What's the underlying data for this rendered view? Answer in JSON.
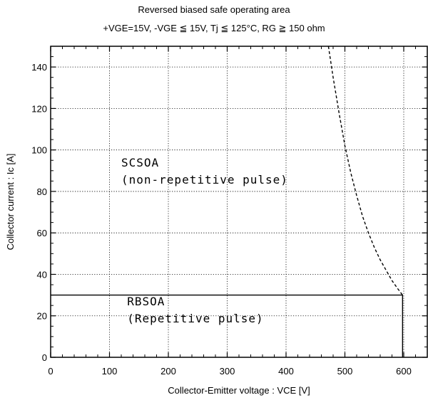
{
  "chart_data": {
    "type": "line",
    "title": "Reversed biased safe operating area",
    "subtitle": "+VGE=15V,  -VGE ≦ 15V,  Tj ≦ 125°C,  RG ≧ 150 ohm",
    "xlabel": "Collector-Emitter voltage  :  VCE [V]",
    "ylabel": "Collector current  :  Ic [A]",
    "xlim": [
      0,
      640
    ],
    "ylim": [
      0,
      150
    ],
    "xticks": [
      0,
      100,
      200,
      300,
      400,
      500,
      600
    ],
    "yticks": [
      0,
      20,
      40,
      60,
      80,
      100,
      120,
      140
    ],
    "grid": true,
    "series": [
      {
        "name": "SCSOA (non-repetitive pulse)",
        "style": "dashed",
        "color": "#000000",
        "x": [
          472,
          480,
          490,
          500,
          510,
          520,
          530,
          540,
          550,
          560,
          570,
          580,
          590,
          598
        ],
        "y": [
          150,
          135,
          118,
          102,
          89,
          78,
          68,
          60,
          53,
          47,
          42,
          37,
          33,
          30
        ]
      },
      {
        "name": "RBSOA (Repetitive pulse)",
        "style": "solid",
        "color": "#000000",
        "x": [
          0,
          598,
          598
        ],
        "y": [
          30,
          30,
          0
        ]
      }
    ],
    "annotations": [
      {
        "lines": [
          "SCSOA",
          "(non-repetitive pulse)"
        ],
        "x": 120,
        "y": 92
      },
      {
        "lines": [
          "RBSOA",
          "(Repetitive pulse)"
        ],
        "x": 130,
        "y": 25
      }
    ]
  }
}
